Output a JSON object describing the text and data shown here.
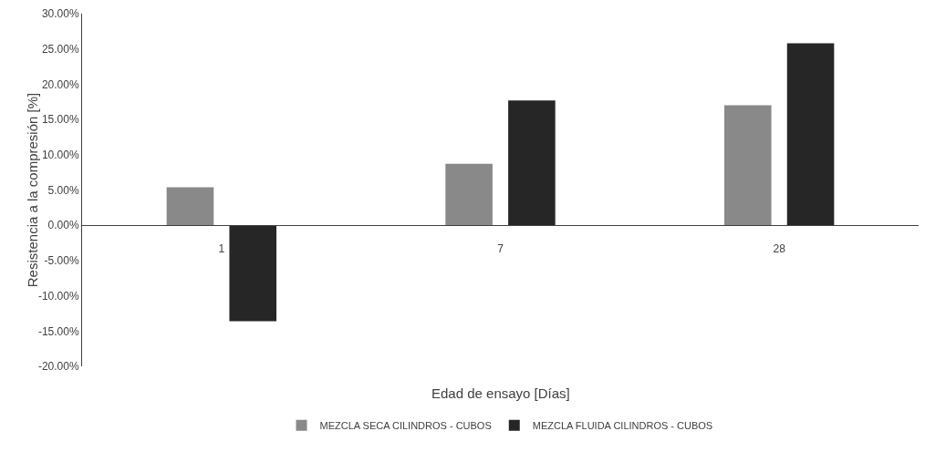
{
  "chart_data": {
    "type": "bar",
    "xlabel": "Edad de ensayo [Días]",
    "ylabel": "Resistencia a la compresión [%]",
    "categories": [
      "1",
      "7",
      "28"
    ],
    "series": [
      {
        "name": "MEZCLA SECA CILINDROS - CUBOS",
        "color": "#898989",
        "values": [
          5.4,
          8.7,
          17.0
        ]
      },
      {
        "name": "MEZCLA FLUIDA CILINDROS - CUBOS",
        "color": "#262626",
        "values": [
          -13.6,
          17.7,
          25.8
        ]
      }
    ],
    "ylim": [
      -20,
      30
    ],
    "yticks": [
      {
        "value": -20,
        "label": "-20.00%"
      },
      {
        "value": -15,
        "label": "-15.00%"
      },
      {
        "value": -10,
        "label": "-10.00%"
      },
      {
        "value": -5,
        "label": "-5.00%"
      },
      {
        "value": 0,
        "label": "0.00%"
      },
      {
        "value": 5,
        "label": "5.00%"
      },
      {
        "value": 10,
        "label": "10.00%"
      },
      {
        "value": 15,
        "label": "15.00%"
      },
      {
        "value": 20,
        "label": "20.00%"
      },
      {
        "value": 25,
        "label": "25.00%"
      },
      {
        "value": 30,
        "label": "30.00%"
      }
    ],
    "grid": false,
    "legend": "bottom"
  }
}
